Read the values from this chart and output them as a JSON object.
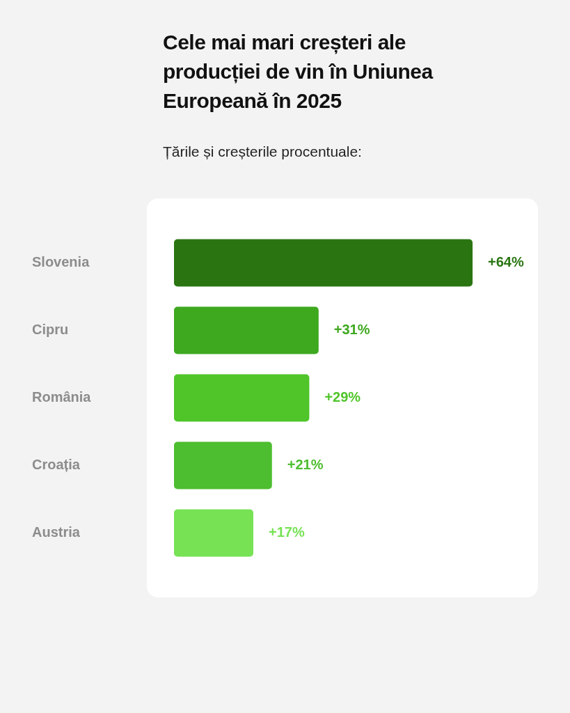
{
  "chart_data": {
    "type": "bar",
    "orientation": "horizontal",
    "title": "Cele mai mari creșteri ale producției de vin în Uniunea Europeană în 2025",
    "subtitle": "Țările și creșterile procentuale:",
    "categories": [
      "Slovenia",
      "Cipru",
      "România",
      "Croația",
      "Austria"
    ],
    "values": [
      64,
      31,
      29,
      21,
      17
    ],
    "colors": [
      "#2a7512",
      "#3ea81f",
      "#4fc52a",
      "#4dbe2f",
      "#76e254"
    ],
    "value_labels": [
      "+64%",
      "+31%",
      "+29%",
      "+21%",
      "+17%"
    ],
    "tick_labels": "y",
    "legend": false
  }
}
